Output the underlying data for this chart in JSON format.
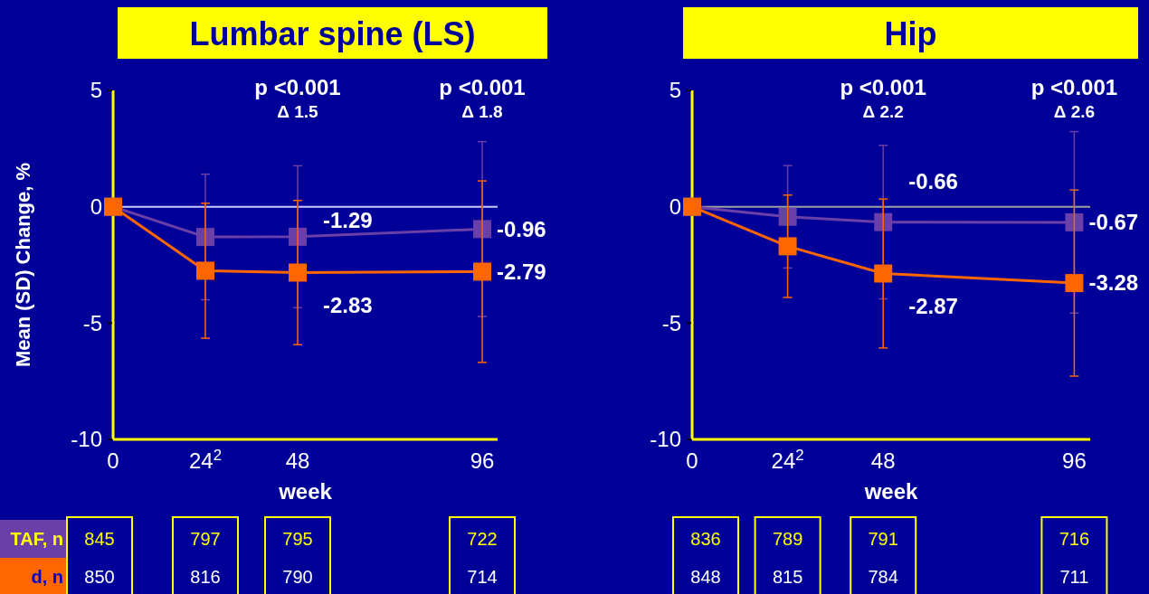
{
  "chart_data": [
    {
      "type": "line",
      "title": "Lumbar spine (LS)",
      "xlabel": "week",
      "ylabel": "Mean (SD) Change,  %",
      "x": [
        0,
        24,
        48,
        96
      ],
      "xlim": [
        0,
        100
      ],
      "xticks": [
        0,
        {
          "value": 24,
          "label": "24$^{2}$"
        },
        48,
        96
      ],
      "ylim": [
        -10,
        5
      ],
      "yticks": [
        -10,
        -5,
        0,
        5
      ],
      "marker": "square",
      "grid": false,
      "series": [
        {
          "color": "#6a3fa8",
          "values": [
            0,
            -1.3,
            -1.29,
            -0.96
          ],
          "errors": [
            null,
            2.7,
            3.05,
            3.76
          ],
          "value_labels": [
            null,
            null,
            "-1.29",
            "-0.96"
          ]
        },
        {
          "color": "#ff6600",
          "values": [
            0,
            -2.75,
            -2.83,
            -2.79
          ],
          "errors": [
            null,
            2.9,
            3.1,
            3.9
          ],
          "value_labels": [
            null,
            null,
            "-2.83",
            "-2.79"
          ]
        }
      ],
      "ref_lines": [
        {
          "axis": "y",
          "value": 0,
          "color": "#c8c8ff"
        }
      ],
      "annotations": [
        "p <0.001",
        "Δ 1.5",
        "p <0.001",
        "Δ 1.8",
        "TAF, n",
        "d, n",
        "845",
        "797",
        "795",
        "722",
        "850",
        "816",
        "790",
        "714"
      ]
    },
    {
      "type": "line",
      "title": "Hip",
      "xlabel": "week",
      "x": [
        0,
        24,
        48,
        96
      ],
      "xlim": [
        0,
        100
      ],
      "xticks": [
        0,
        {
          "value": 24,
          "label": "24$^{2}$"
        },
        48,
        96
      ],
      "ylim": [
        -10,
        5
      ],
      "yticks": [
        -10,
        -5,
        0,
        5
      ],
      "marker": "square",
      "grid": false,
      "series": [
        {
          "color": "#6a3fa8",
          "values": [
            0,
            -0.43,
            -0.66,
            -0.67
          ],
          "errors": [
            null,
            2.2,
            3.3,
            3.9
          ],
          "value_labels": [
            null,
            null,
            "-0.66",
            "-0.67"
          ]
        },
        {
          "color": "#ff6600",
          "values": [
            0,
            -1.7,
            -2.87,
            -3.28
          ],
          "errors": [
            null,
            2.2,
            3.2,
            4.0
          ],
          "value_labels": [
            null,
            null,
            "-2.87",
            "-3.28"
          ]
        }
      ],
      "ref_lines": [
        {
          "axis": "y",
          "value": 0,
          "color": "#a0a0a0"
        }
      ],
      "annotations": [
        "p <0.001",
        "Δ 2.2",
        "p <0.001",
        "Δ 2.6",
        "836",
        "789",
        "791",
        "716",
        "848",
        "815",
        "784",
        "711"
      ]
    }
  ]
}
